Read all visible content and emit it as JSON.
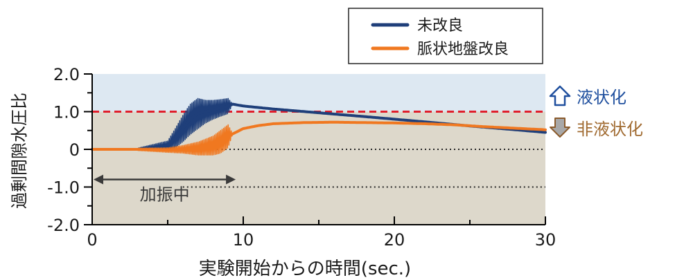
{
  "chart_data": {
    "type": "line",
    "xlabel": "実験開始からの時間(sec.)",
    "ylabel": "過剰間隙水圧比",
    "xlim": [
      0,
      30
    ],
    "ylim": [
      -2,
      2
    ],
    "x_ticks": [
      "0",
      "10",
      "20",
      "30"
    ],
    "y_ticks": [
      "2.0",
      "1.0",
      "0",
      "-1.0",
      "-2.0"
    ],
    "liquefaction_threshold": 1.0,
    "legend_position": "top-right",
    "series": [
      {
        "name": "未改良",
        "color": "#1f3f7a",
        "mean": {
          "x": [
            0,
            3,
            4,
            5,
            5.5,
            6,
            6.5,
            7,
            7.5,
            8,
            8.5,
            9,
            9.3,
            10,
            12,
            15,
            18,
            20,
            22,
            25,
            28,
            30
          ],
          "y": [
            0,
            0,
            0.05,
            0.1,
            0.3,
            0.55,
            0.8,
            0.95,
            1.0,
            1.05,
            1.1,
            1.15,
            1.2,
            1.15,
            1.07,
            0.97,
            0.87,
            0.8,
            0.73,
            0.62,
            0.52,
            0.45
          ]
        },
        "oscillation": {
          "x": [
            3,
            5,
            5.5,
            6,
            6.5,
            7,
            7.5,
            8,
            8.5,
            9,
            9.3
          ],
          "amplitude": [
            0.03,
            0.12,
            0.25,
            0.35,
            0.4,
            0.4,
            0.3,
            0.25,
            0.22,
            0.2,
            0
          ]
        }
      },
      {
        "name": "脈状地盤改良",
        "color": "#f07820",
        "mean": {
          "x": [
            0,
            3,
            5,
            6,
            7,
            8,
            8.5,
            9,
            9.5,
            10,
            11,
            12,
            14,
            16,
            18,
            20,
            22,
            24,
            26,
            28,
            30
          ],
          "y": [
            0,
            0,
            -0.02,
            0,
            0.02,
            0.1,
            0.2,
            0.35,
            0.45,
            0.55,
            0.63,
            0.68,
            0.71,
            0.72,
            0.71,
            0.7,
            0.68,
            0.65,
            0.6,
            0.56,
            0.52
          ]
        },
        "oscillation": {
          "x": [
            3,
            5,
            6,
            7,
            8,
            8.5,
            9,
            9.3
          ],
          "amplitude": [
            0.03,
            0.06,
            0.1,
            0.17,
            0.25,
            0.3,
            0.3,
            0
          ]
        }
      }
    ],
    "annotations": {
      "shaking_label": "加振中",
      "shaking_range": [
        0,
        9.5
      ],
      "zone_liquefied": "液状化",
      "zone_not_liquefied": "非液状化"
    },
    "colors": {
      "zone_upper": "#dde8f2",
      "zone_lower": "#ddd8cb",
      "threshold_line": "#e01e2b",
      "liquefied_text": "#1f4f9e",
      "not_liquefied_text": "#a06a30",
      "not_liquefied_arrow": "#a8a8a8"
    }
  }
}
